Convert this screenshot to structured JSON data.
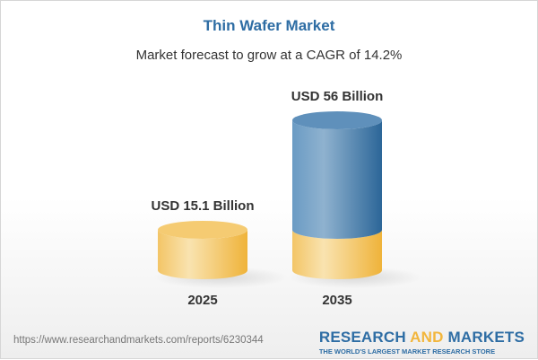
{
  "title": "Thin Wafer Market",
  "subtitle": "Market forecast to grow at a CAGR of 14.2%",
  "footer": {
    "url": "https://www.researchandmarkets.com/reports/6230344",
    "logo_research": "RESEARCH",
    "logo_and": "AND",
    "logo_markets": "MARKETS",
    "logo_tagline": "THE WORLD'S LARGEST MARKET RESEARCH STORE"
  },
  "chart_data": {
    "type": "bar",
    "style": "3d-cylinder",
    "title": "Thin Wafer Market",
    "subtitle": "Market forecast to grow at a CAGR of 14.2%",
    "categories": [
      "2025",
      "2035"
    ],
    "values": [
      15.1,
      56
    ],
    "unit": "USD Billion",
    "data_labels": [
      "USD 15.1 Billion",
      "USD 56 Billion"
    ],
    "colors": {
      "base": "#f2c25a",
      "growth": "#3a76a8"
    }
  }
}
